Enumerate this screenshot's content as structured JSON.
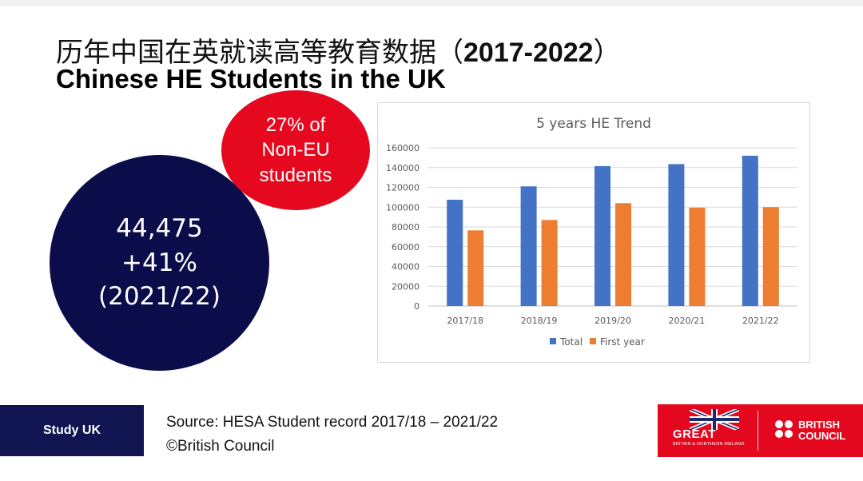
{
  "slide": {
    "title_cn": "历年中国在英就读高等教育数据（",
    "title_years": "2017-2022",
    "title_close": "）",
    "title_en": "Chinese HE Students in the UK"
  },
  "bubbles": {
    "red": {
      "line1": "27% of",
      "line2": "Non-EU",
      "line3": "students"
    },
    "navy": {
      "line1": "44,475",
      "line2": "+41%",
      "line3": "(2021/22)"
    }
  },
  "chart_data": {
    "type": "bar",
    "title": "5 years HE Trend",
    "categories": [
      "2017/18",
      "2018/19",
      "2019/20",
      "2020/21",
      "2021/22"
    ],
    "series": [
      {
        "name": "Total",
        "color": "#4472C4",
        "values": [
          107500,
          121000,
          141500,
          143500,
          152000
        ]
      },
      {
        "name": "First year",
        "color": "#ED7D31",
        "values": [
          76500,
          87000,
          104000,
          99500,
          100000
        ]
      }
    ],
    "ylim": [
      0,
      160000
    ],
    "yticks": [
      0,
      20000,
      40000,
      60000,
      80000,
      100000,
      120000,
      140000,
      160000
    ],
    "grid": true,
    "legend": "bottom",
    "xlabel": "",
    "ylabel": ""
  },
  "footer": {
    "tag": "Study UK",
    "source": "Source: HESA Student record 2017/18 – 2021/22",
    "copyright": "©British Council"
  },
  "logos": {
    "great_word": "GREAT",
    "great_sub": "BRITAIN & NORTHERN IRELAND",
    "bc_line1": "BRITISH",
    "bc_line2": "COUNCIL",
    "color": "#E4081E"
  }
}
